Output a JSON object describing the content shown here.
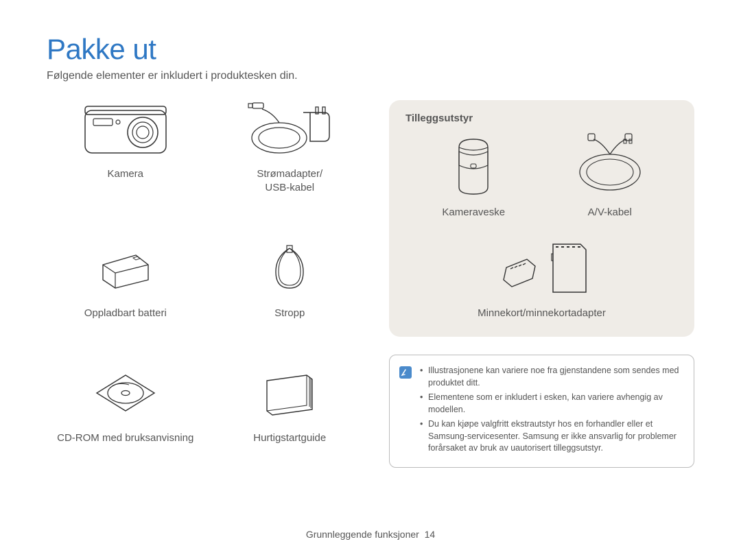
{
  "colors": {
    "title": "#2f78c4",
    "text": "#555555",
    "accessories_bg": "#efece7",
    "note_border": "#bbbbbb",
    "note_icon_bg": "#4a8acb",
    "page_bg": "#ffffff",
    "stroke": "#333333"
  },
  "typography": {
    "title_fontsize": 42,
    "subtitle_fontsize": 16,
    "label_fontsize": 15,
    "note_fontsize": 12.5,
    "footer_fontsize": 14
  },
  "title": "Pakke ut",
  "subtitle": "Følgende elementer er inkludert i produktesken din.",
  "included_items": [
    {
      "icon": "camera-icon",
      "label": "Kamera"
    },
    {
      "icon": "adapter-icon",
      "label": "Strømadapter/\nUSB-kabel"
    },
    {
      "icon": "battery-icon",
      "label": "Oppladbart batteri"
    },
    {
      "icon": "strap-icon",
      "label": "Stropp"
    },
    {
      "icon": "cdrom-icon",
      "label": "CD-ROM med bruksanvisning"
    },
    {
      "icon": "guide-icon",
      "label": "Hurtigstartguide"
    }
  ],
  "accessories": {
    "title": "Tilleggsutstyr",
    "items": [
      {
        "icon": "case-icon",
        "label": "Kameraveske"
      },
      {
        "icon": "avcable-icon",
        "label": "A/V-kabel"
      },
      {
        "icon": "memorycard-icon",
        "label": "Minnekort/minnekortadapter",
        "full": true
      }
    ]
  },
  "notes": [
    "Illustrasjonene kan variere noe fra gjenstandene som sendes med produktet ditt.",
    "Elementene som er inkludert i esken, kan variere avhengig av modellen.",
    "Du kan kjøpe valgfritt ekstrautstyr hos en forhandler eller et Samsung-servicesenter. Samsung er ikke ansvarlig for problemer forårsaket av bruk av uautorisert tilleggsutstyr."
  ],
  "footer": {
    "section": "Grunnleggende funksjoner",
    "page": "14"
  }
}
